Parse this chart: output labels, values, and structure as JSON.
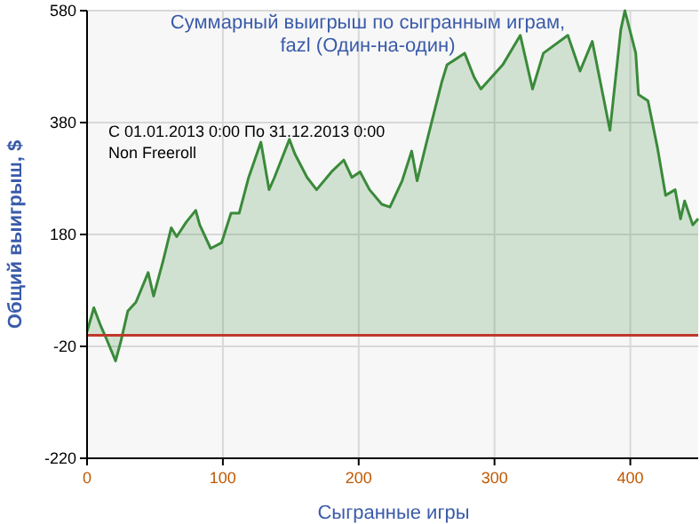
{
  "chart_data": {
    "type": "area",
    "title": "Суммарный выигрыш по сыгранным играм,",
    "subtitle": "fazl (Один-на-один)",
    "xlabel": "Сыгранные игры",
    "ylabel": "Общий выигрыш, $",
    "annotations": [
      "С 01.01.2013 0:00 По 31.12.2013 0:00",
      "Non Freeroll"
    ],
    "xlim": [
      0,
      450
    ],
    "xticks": [
      0,
      100,
      200,
      300,
      400
    ],
    "ylim": [
      -220,
      580
    ],
    "yticks": [
      580,
      380,
      180,
      -20,
      -220
    ],
    "grid": true,
    "ref_lines": [
      {
        "axis": "y",
        "value": 0,
        "color": "#c0392b"
      }
    ],
    "series": [
      {
        "color": "#3a8a3a",
        "x": [
          0,
          5,
          10,
          14,
          21,
          25,
          30,
          36,
          45,
          49,
          56,
          62,
          66,
          73,
          80,
          83,
          91,
          99,
          106,
          112,
          119,
          128,
          134,
          138,
          149,
          153,
          162,
          169,
          180,
          189,
          195,
          201,
          208,
          217,
          223,
          232,
          239,
          243,
          250,
          261,
          265,
          278,
          285,
          290,
          306,
          319,
          328,
          336,
          354,
          363,
          372,
          385,
          393,
          396,
          404,
          406,
          413,
          420,
          426,
          433,
          437,
          440,
          446,
          450
        ],
        "values": [
          6,
          49,
          17,
          -5,
          -46,
          -10,
          43,
          59,
          112,
          70,
          133,
          192,
          176,
          202,
          223,
          197,
          155,
          165,
          218,
          218,
          282,
          345,
          260,
          282,
          350,
          324,
          282,
          260,
          292,
          313,
          282,
          292,
          260,
          234,
          229,
          276,
          329,
          276,
          345,
          451,
          483,
          504,
          461,
          440,
          483,
          536,
          440,
          504,
          536,
          472,
          525,
          366,
          546,
          580,
          504,
          430,
          419,
          335,
          250,
          260,
          208,
          240,
          197,
          208
        ]
      }
    ]
  }
}
